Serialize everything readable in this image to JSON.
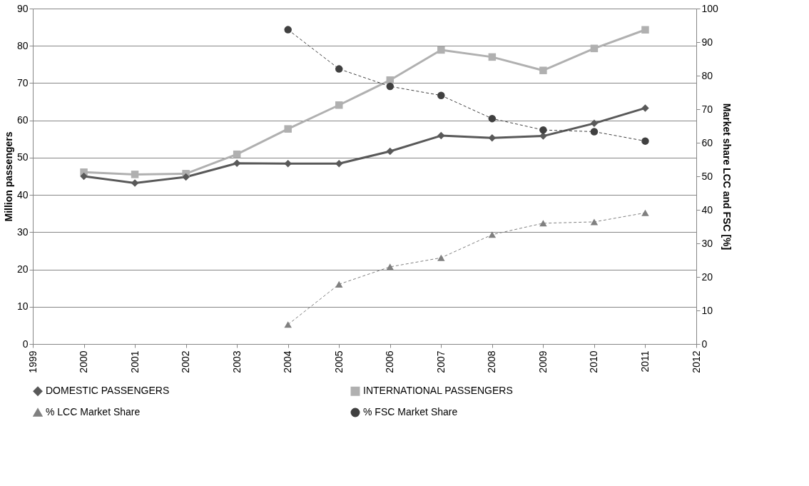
{
  "chart_data": {
    "type": "line",
    "x": [
      2000,
      2001,
      2002,
      2003,
      2004,
      2005,
      2006,
      2007,
      2008,
      2009,
      2010,
      2011
    ],
    "xlim": [
      1999,
      2012
    ],
    "xticks": [
      1999,
      2000,
      2001,
      2002,
      2003,
      2004,
      2005,
      2006,
      2007,
      2008,
      2009,
      2010,
      2011,
      2012
    ],
    "ylabel": "Million passengers",
    "ylim": [
      0,
      90
    ],
    "yticks": [
      0,
      10,
      20,
      30,
      40,
      50,
      60,
      70,
      80,
      90
    ],
    "y2label": "Market share LCC and FSC [%]",
    "y2lim": [
      0,
      100
    ],
    "y2ticks": [
      0,
      10,
      20,
      30,
      40,
      50,
      60,
      70,
      80,
      90,
      100
    ],
    "grid": "y",
    "legend": "bottom",
    "series": [
      {
        "name": "DOMESTIC PASSENGERS",
        "color": "#595959",
        "marker": "diamond",
        "line_style": "solid",
        "values": [
          45.0,
          43.2,
          44.8,
          48.5,
          48.4,
          48.4,
          51.7,
          55.9,
          55.3,
          55.8,
          59.2,
          63.3
        ]
      },
      {
        "name": "INTERNATIONAL PASSENGERS",
        "color": "#b0b0b0",
        "marker": "square",
        "line_style": "solid",
        "values": [
          46.1,
          45.5,
          45.7,
          50.9,
          57.7,
          64.1,
          70.8,
          78.9,
          77.0,
          73.4,
          79.3,
          84.3
        ]
      },
      {
        "name": "% LCC Market Share",
        "color": "#808080",
        "marker": "triangle",
        "line_style": "dashed",
        "axis": "y2",
        "values": [
          null,
          null,
          null,
          null,
          5.8,
          17.8,
          23.0,
          25.7,
          32.6,
          36.0,
          36.4,
          39.1
        ]
      },
      {
        "name": "% FSC Market Share",
        "color": "#404040",
        "marker": "circle",
        "line_style": "dashed",
        "axis": "y2",
        "values": [
          null,
          null,
          null,
          null,
          93.7,
          82.0,
          76.8,
          74.1,
          67.2,
          63.8,
          63.3,
          60.5
        ]
      }
    ]
  }
}
